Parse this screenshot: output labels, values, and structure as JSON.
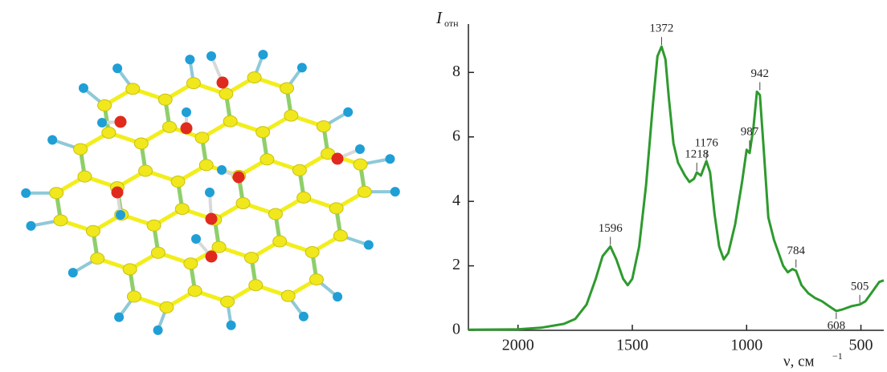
{
  "chart_data": {
    "type": "line",
    "y_label": "I",
    "y_label_sub": "отн",
    "x_label": "ν, см",
    "x_label_sup": "−1",
    "xlim": [
      2217,
      400
    ],
    "xticks": [
      2000,
      1500,
      1000,
      500
    ],
    "ylim": [
      0,
      9.5
    ],
    "yticks": [
      0,
      2,
      4,
      6,
      8
    ],
    "series": [
      {
        "color": "#2e9a2e",
        "x": [
          2217,
          2000,
          1900,
          1800,
          1750,
          1700,
          1660,
          1630,
          1596,
          1570,
          1540,
          1520,
          1500,
          1470,
          1440,
          1410,
          1390,
          1372,
          1355,
          1340,
          1320,
          1300,
          1270,
          1250,
          1230,
          1218,
          1200,
          1176,
          1160,
          1140,
          1120,
          1100,
          1080,
          1050,
          1020,
          1000,
          987,
          970,
          955,
          942,
          925,
          905,
          880,
          860,
          840,
          820,
          800,
          784,
          760,
          730,
          700,
          670,
          640,
          608,
          580,
          540,
          505,
          480,
          450,
          420,
          400
        ],
        "values": [
          0.02,
          0.03,
          0.08,
          0.2,
          0.35,
          0.8,
          1.6,
          2.3,
          2.6,
          2.2,
          1.6,
          1.4,
          1.6,
          2.6,
          4.5,
          7.0,
          8.5,
          8.8,
          8.4,
          7.2,
          5.8,
          5.2,
          4.8,
          4.6,
          4.7,
          4.9,
          4.8,
          5.25,
          4.9,
          3.6,
          2.6,
          2.2,
          2.4,
          3.3,
          4.6,
          5.6,
          5.5,
          6.3,
          7.4,
          7.3,
          5.6,
          3.5,
          2.8,
          2.4,
          2.0,
          1.8,
          1.9,
          1.85,
          1.4,
          1.15,
          1.0,
          0.9,
          0.75,
          0.6,
          0.65,
          0.75,
          0.8,
          0.9,
          1.2,
          1.5,
          1.55
        ]
      }
    ],
    "annotations": [
      {
        "x": 1596,
        "y": 2.6
      },
      {
        "x": 1372,
        "y": 8.8
      },
      {
        "x": 1218,
        "y": 4.9
      },
      {
        "x": 1176,
        "y": 5.25
      },
      {
        "x": 987,
        "y": 5.6
      },
      {
        "x": 942,
        "y": 7.4
      },
      {
        "x": 784,
        "y": 1.9
      },
      {
        "x": 608,
        "y": 0.6,
        "side": "below"
      },
      {
        "x": 505,
        "y": 0.8
      }
    ]
  }
}
